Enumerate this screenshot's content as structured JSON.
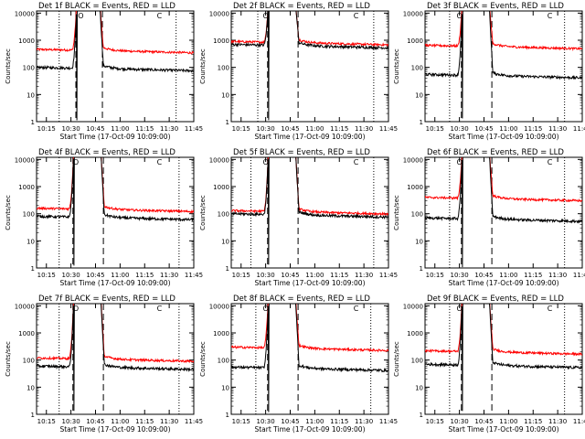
{
  "chart_data": {
    "type": "line",
    "layout": "3x3 grid",
    "xlabel": "Start Time (17-Oct-09 10:09:00)",
    "ylabel": "Counts/sec",
    "yscale": "log",
    "ylim": [
      1,
      12000
    ],
    "yticks": [
      {
        "value": 1,
        "label": "1"
      },
      {
        "value": 10,
        "label": "10"
      },
      {
        "value": 100,
        "label": "100"
      },
      {
        "value": 1000,
        "label": "1000"
      },
      {
        "value": 10000,
        "label": "10000"
      }
    ],
    "xlim": [
      10.15,
      11.75
    ],
    "xticks": [
      {
        "value": 10.25,
        "label": "10:15"
      },
      {
        "value": 10.5,
        "label": "10:30"
      },
      {
        "value": 10.75,
        "label": "10:45"
      },
      {
        "value": 11.0,
        "label": "11:00"
      },
      {
        "value": 11.25,
        "label": "11:15"
      },
      {
        "value": 11.5,
        "label": "11:30"
      },
      {
        "value": 11.75,
        "label": "11:45"
      }
    ],
    "marker_labels": {
      "open": "O",
      "close": "C"
    },
    "colors": {
      "events": "#000000",
      "lld": "#ff0000"
    },
    "series_names": [
      "Events",
      "LLD"
    ],
    "panels": [
      {
        "title": "Det 1f BLACK = Events, RED = LLD",
        "events_base": 100,
        "lld_base": 460,
        "dash_lines": [
          10.55,
          10.82
        ],
        "dot_lines": [
          10.38,
          11.57
        ],
        "marker_open": 10.6,
        "marker_close": 11.4
      },
      {
        "title": "Det 2f BLACK = Events, RED = LLD",
        "events_base": 700,
        "lld_base": 900,
        "dash_lines": [
          10.52,
          10.83
        ],
        "dot_lines": [
          10.42,
          11.6
        ],
        "marker_open": 10.5,
        "marker_close": 11.42
      },
      {
        "title": "Det 3f BLACK = Events, RED = LLD",
        "events_base": 55,
        "lld_base": 650,
        "dash_lines": [
          10.52,
          10.83
        ],
        "dot_lines": [
          10.4,
          11.57
        ],
        "marker_open": 10.5,
        "marker_close": 11.42
      },
      {
        "title": "Det 4f BLACK = Events, RED = LLD",
        "events_base": 80,
        "lld_base": 160,
        "dash_lines": [
          10.52,
          10.83
        ],
        "dot_lines": [
          10.38,
          11.6
        ],
        "marker_open": 10.55,
        "marker_close": 11.4
      },
      {
        "title": "Det 5f BLACK = Events, RED = LLD",
        "events_base": 100,
        "lld_base": 130,
        "dash_lines": [
          10.52,
          10.83
        ],
        "dot_lines": [
          10.35,
          11.6
        ],
        "marker_open": 10.5,
        "marker_close": 11.42
      },
      {
        "title": "Det 6f BLACK = Events, RED = LLD",
        "events_base": 70,
        "lld_base": 400,
        "dash_lines": [
          10.52,
          10.83
        ],
        "dot_lines": [
          10.4,
          11.57
        ],
        "marker_open": 10.5,
        "marker_close": 11.42
      },
      {
        "title": "Det 7f BLACK = Events, RED = LLD",
        "events_base": 60,
        "lld_base": 120,
        "dash_lines": [
          10.52,
          10.83
        ],
        "dot_lines": [
          10.38,
          11.6
        ],
        "marker_open": 10.55,
        "marker_close": 11.4
      },
      {
        "title": "Det 8f BLACK = Events, RED = LLD",
        "events_base": 55,
        "lld_base": 300,
        "dash_lines": [
          10.52,
          10.83
        ],
        "dot_lines": [
          10.4,
          11.57
        ],
        "marker_open": 10.5,
        "marker_close": 11.42
      },
      {
        "title": "Det 9f BLACK = Events, RED = LLD",
        "events_base": 70,
        "lld_base": 220,
        "dash_lines": [
          10.52,
          10.83
        ],
        "dot_lines": [
          10.4,
          11.57
        ],
        "marker_open": 10.5,
        "marker_close": 11.42
      }
    ]
  }
}
